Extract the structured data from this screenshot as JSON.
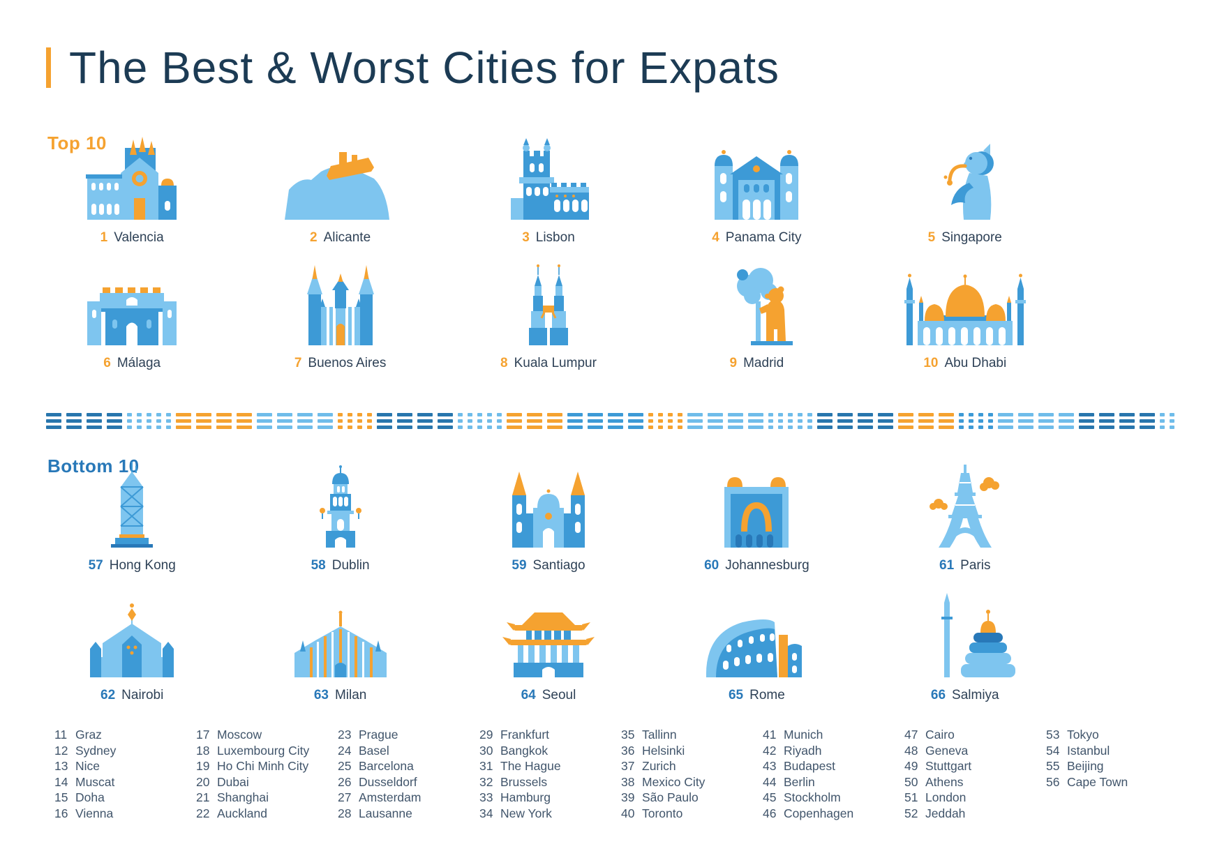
{
  "title": "The Best & Worst Cities for Expats",
  "colors": {
    "orange": "#F5A230",
    "light_blue": "#7EC5EF",
    "mid_blue": "#3D9AD6",
    "dark_blue": "#2878B8",
    "title_navy": "#1C3B54",
    "list_text": "#41556B"
  },
  "sections": {
    "top": {
      "label": "Top 10",
      "items": [
        {
          "rank": "1",
          "name": "Valencia",
          "icon": "valencia"
        },
        {
          "rank": "2",
          "name": "Alicante",
          "icon": "alicante"
        },
        {
          "rank": "3",
          "name": "Lisbon",
          "icon": "lisbon"
        },
        {
          "rank": "4",
          "name": "Panama City",
          "icon": "panama-city"
        },
        {
          "rank": "5",
          "name": "Singapore",
          "icon": "singapore"
        },
        {
          "rank": "6",
          "name": "Málaga",
          "icon": "malaga"
        },
        {
          "rank": "7",
          "name": "Buenos Aires",
          "icon": "buenos-aires"
        },
        {
          "rank": "8",
          "name": "Kuala Lumpur",
          "icon": "kuala-lumpur"
        },
        {
          "rank": "9",
          "name": "Madrid",
          "icon": "madrid"
        },
        {
          "rank": "10",
          "name": "Abu Dhabi",
          "icon": "abu-dhabi"
        }
      ]
    },
    "bottom": {
      "label": "Bottom 10",
      "items": [
        {
          "rank": "57",
          "name": "Hong Kong",
          "icon": "hong-kong"
        },
        {
          "rank": "58",
          "name": "Dublin",
          "icon": "dublin"
        },
        {
          "rank": "59",
          "name": "Santiago",
          "icon": "santiago"
        },
        {
          "rank": "60",
          "name": "Johannesburg",
          "icon": "johannesburg"
        },
        {
          "rank": "61",
          "name": "Paris",
          "icon": "paris"
        },
        {
          "rank": "62",
          "name": "Nairobi",
          "icon": "nairobi"
        },
        {
          "rank": "63",
          "name": "Milan",
          "icon": "milan"
        },
        {
          "rank": "64",
          "name": "Seoul",
          "icon": "seoul"
        },
        {
          "rank": "65",
          "name": "Rome",
          "icon": "rome"
        },
        {
          "rank": "66",
          "name": "Salmiya",
          "icon": "salmiya"
        }
      ]
    }
  },
  "middle_ranks": {
    "columns": [
      [
        {
          "rank": "11",
          "name": "Graz"
        },
        {
          "rank": "12",
          "name": "Sydney"
        },
        {
          "rank": "13",
          "name": "Nice"
        },
        {
          "rank": "14",
          "name": "Muscat"
        },
        {
          "rank": "15",
          "name": "Doha"
        },
        {
          "rank": "16",
          "name": "Vienna"
        }
      ],
      [
        {
          "rank": "17",
          "name": "Moscow"
        },
        {
          "rank": "18",
          "name": "Luxembourg City"
        },
        {
          "rank": "19",
          "name": "Ho Chi Minh City"
        },
        {
          "rank": "20",
          "name": "Dubai"
        },
        {
          "rank": "21",
          "name": "Shanghai"
        },
        {
          "rank": "22",
          "name": "Auckland"
        }
      ],
      [
        {
          "rank": "23",
          "name": "Prague"
        },
        {
          "rank": "24",
          "name": "Basel"
        },
        {
          "rank": "25",
          "name": "Barcelona"
        },
        {
          "rank": "26",
          "name": "Dusseldorf"
        },
        {
          "rank": "27",
          "name": "Amsterdam"
        },
        {
          "rank": "28",
          "name": "Lausanne"
        }
      ],
      [
        {
          "rank": "29",
          "name": "Frankfurt"
        },
        {
          "rank": "30",
          "name": "Bangkok"
        },
        {
          "rank": "31",
          "name": "The Hague"
        },
        {
          "rank": "32",
          "name": "Brussels"
        },
        {
          "rank": "33",
          "name": "Hamburg"
        },
        {
          "rank": "34",
          "name": "New York"
        }
      ],
      [
        {
          "rank": "35",
          "name": "Tallinn"
        },
        {
          "rank": "36",
          "name": "Helsinki"
        },
        {
          "rank": "37",
          "name": "Zurich"
        },
        {
          "rank": "38",
          "name": "Mexico City"
        },
        {
          "rank": "39",
          "name": "São Paulo"
        },
        {
          "rank": "40",
          "name": "Toronto"
        }
      ],
      [
        {
          "rank": "41",
          "name": "Munich"
        },
        {
          "rank": "42",
          "name": "Riyadh"
        },
        {
          "rank": "43",
          "name": "Budapest"
        },
        {
          "rank": "44",
          "name": "Berlin"
        },
        {
          "rank": "45",
          "name": "Stockholm"
        },
        {
          "rank": "46",
          "name": "Copenhagen"
        }
      ],
      [
        {
          "rank": "47",
          "name": "Cairo"
        },
        {
          "rank": "48",
          "name": "Geneva"
        },
        {
          "rank": "49",
          "name": "Stuttgart"
        },
        {
          "rank": "50",
          "name": "Athens"
        },
        {
          "rank": "51",
          "name": "London"
        },
        {
          "rank": "52",
          "name": "Jeddah"
        }
      ],
      [
        {
          "rank": "53",
          "name": "Tokyo"
        },
        {
          "rank": "54",
          "name": "Istanbul"
        },
        {
          "rank": "55",
          "name": "Beijing"
        },
        {
          "rank": "56",
          "name": "Cape Town"
        }
      ]
    ]
  }
}
